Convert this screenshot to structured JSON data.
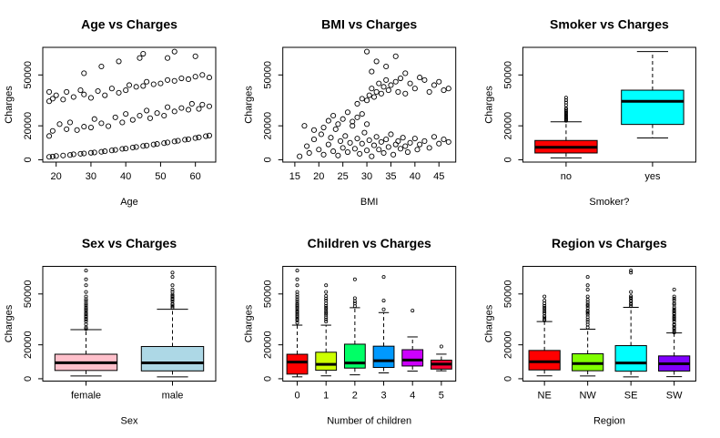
{
  "chart_data": [
    {
      "type": "scatter",
      "title": "Age vs Charges",
      "xlabel": "Age",
      "ylabel": "Charges",
      "xlim": [
        16.16,
        65.84
      ],
      "xticks": [
        20,
        30,
        40,
        50,
        60
      ],
      "ylim": [
        -1385,
        66276
      ],
      "yticks": [
        0,
        20000,
        50000
      ],
      "x": [
        18,
        19,
        20,
        22,
        24,
        25,
        27,
        28,
        30,
        31,
        33,
        34,
        36,
        37,
        39,
        40,
        42,
        43,
        45,
        46,
        48,
        49,
        51,
        52,
        54,
        55,
        57,
        58,
        60,
        61,
        63,
        64,
        18,
        19,
        21,
        23,
        24,
        26,
        28,
        30,
        31,
        33,
        35,
        37,
        39,
        40,
        42,
        44,
        46,
        47,
        49,
        51,
        52,
        54,
        56,
        58,
        59,
        61,
        62,
        64,
        18,
        19,
        20,
        22,
        23,
        25,
        27,
        28,
        30,
        32,
        34,
        36,
        38,
        40,
        41,
        43,
        45,
        46,
        48,
        50,
        52,
        54,
        56,
        58,
        60,
        62,
        64,
        18,
        28,
        33,
        38,
        44,
        45,
        52,
        54,
        60
      ],
      "values": [
        1700,
        1900,
        2200,
        2500,
        2800,
        3200,
        3500,
        3700,
        4100,
        4300,
        4700,
        5000,
        5500,
        5800,
        6400,
        6600,
        7200,
        7500,
        8100,
        8400,
        9000,
        9300,
        9800,
        10200,
        10800,
        11200,
        11800,
        12100,
        12800,
        13200,
        13900,
        14300,
        14000,
        17000,
        21000,
        18000,
        22000,
        17500,
        19500,
        19000,
        24000,
        21500,
        19800,
        25000,
        22000,
        27000,
        23500,
        26000,
        29000,
        24500,
        27500,
        26000,
        31000,
        28500,
        30500,
        29500,
        33000,
        30000,
        32500,
        31500,
        34500,
        36000,
        38000,
        35500,
        40000,
        37000,
        41000,
        38500,
        36500,
        40500,
        38000,
        42000,
        39500,
        41000,
        44000,
        43000,
        43500,
        46000,
        44500,
        45000,
        47000,
        46500,
        48000,
        47500,
        49000,
        50000,
        48500,
        40000,
        51000,
        55000,
        58000,
        60000,
        62500,
        60000,
        63770,
        61000
      ]
    },
    {
      "type": "scatter",
      "title": "BMI vs Charges",
      "xlabel": "BMI",
      "ylabel": "Charges",
      "xlim": [
        12.5,
        48.5
      ],
      "xticks": [
        15,
        20,
        25,
        30,
        35,
        40,
        45
      ],
      "ylim": [
        -1385,
        66276
      ],
      "yticks": [
        0,
        20000,
        50000
      ],
      "x": [
        16,
        17.5,
        18,
        19,
        20,
        20.5,
        21,
        22,
        22.5,
        23,
        23.5,
        24,
        24.5,
        25,
        25.5,
        26,
        26.5,
        27,
        27.5,
        28,
        28.5,
        29,
        29.5,
        30,
        30.5,
        31,
        31.5,
        32,
        32.5,
        33,
        33.5,
        34,
        34.5,
        35,
        35.5,
        36,
        36.5,
        37,
        37.5,
        38,
        38.5,
        39,
        40,
        40.5,
        41,
        42,
        43,
        44,
        45,
        46,
        47,
        17,
        19,
        21,
        22,
        23,
        24,
        25,
        26,
        27,
        28,
        29,
        30,
        30,
        30.5,
        31,
        31.5,
        32,
        32.5,
        33,
        33.5,
        34,
        34.5,
        35,
        36,
        36.5,
        37,
        38,
        39,
        40,
        41,
        42,
        43,
        44,
        45,
        46,
        47,
        29,
        28,
        31,
        32,
        34,
        30,
        36,
        38
      ],
      "values": [
        2000,
        8000,
        4000,
        12000,
        6000,
        15000,
        3000,
        9000,
        13000,
        5000,
        18000,
        2500,
        11000,
        7000,
        14000,
        4500,
        10000,
        20000,
        6500,
        12500,
        3500,
        9500,
        16000,
        5500,
        11500,
        2000,
        8500,
        13500,
        6000,
        10500,
        4000,
        12000,
        7500,
        15000,
        3000,
        9000,
        11000,
        6500,
        13000,
        8000,
        4500,
        10000,
        12500,
        6000,
        9000,
        11000,
        7000,
        13500,
        9500,
        12000,
        10500,
        20000,
        17500,
        19000,
        23000,
        26000,
        21000,
        24000,
        28000,
        22500,
        25000,
        27000,
        21000,
        35000,
        38000,
        42000,
        37000,
        40000,
        45000,
        39000,
        43000,
        47000,
        41000,
        44000,
        46000,
        40000,
        48000,
        39000,
        45000,
        42000,
        48500,
        47000,
        40000,
        44000,
        46000,
        41000,
        42000,
        36000,
        33000,
        52000,
        58000,
        55000,
        63770,
        61000,
        51000
      ]
    },
    {
      "type": "boxplot",
      "title": "Smoker vs Charges",
      "xlabel": "Smoker?",
      "ylabel": "Charges",
      "ylim": [
        -1385,
        66276
      ],
      "yticks": [
        0,
        20000,
        50000
      ],
      "categories": [
        "no",
        "yes"
      ],
      "colors": [
        "#ff0000",
        "#00ffff"
      ],
      "boxes": [
        {
          "whislo": 1122,
          "q1": 3987,
          "median": 7345,
          "q3": 11363,
          "whishi": 22400,
          "outliers": [
            23000,
            23500,
            24000,
            24500,
            25000,
            25700,
            26200,
            27000,
            27700,
            28300,
            29000,
            30000,
            30300,
            32100,
            33700,
            35100,
            36600
          ]
        },
        {
          "whislo": 12829,
          "q1": 20826,
          "median": 34456,
          "q3": 41019,
          "whishi": 63770,
          "outliers": []
        }
      ]
    },
    {
      "type": "boxplot",
      "title": "Sex vs Charges",
      "xlabel": "Sex",
      "ylabel": "Charges",
      "ylim": [
        -1385,
        66276
      ],
      "yticks": [
        0,
        20000,
        50000
      ],
      "categories": [
        "female",
        "male"
      ],
      "colors": [
        "#ffc0cb",
        "#add8e6"
      ],
      "boxes": [
        {
          "whislo": 1607,
          "q1": 4885,
          "median": 9413,
          "q3": 14454,
          "whishi": 28950,
          "outliers": [
            29300,
            30200,
            32100,
            33700,
            34800,
            35600,
            36600,
            37100,
            38100,
            39000,
            40200,
            41100,
            42100,
            43300,
            44400,
            45800,
            46900,
            48500,
            51200,
            55100,
            58600,
            63770
          ]
        },
        {
          "whislo": 1122,
          "q1": 4619,
          "median": 9370,
          "q3": 19007,
          "whishi": 40970,
          "outliers": [
            41900,
            42800,
            43800,
            44200,
            45700,
            46700,
            47300,
            48200,
            48800,
            49600,
            51200,
            52600,
            55100,
            60000,
            62593
          ]
        }
      ]
    },
    {
      "type": "boxplot",
      "title": "Children vs Charges",
      "xlabel": "Number of children",
      "ylabel": "Charges",
      "ylim": [
        -1385,
        66276
      ],
      "yticks": [
        0,
        20000,
        50000
      ],
      "categories": [
        "0",
        "1",
        "2",
        "3",
        "4",
        "5"
      ],
      "colors": [
        "#ff0000",
        "#ccff00",
        "#00ff66",
        "#0099ff",
        "#cc00ff",
        "#ff0033"
      ],
      "boxes": [
        {
          "whislo": 1122,
          "q1": 2735,
          "median": 9857,
          "q3": 14440,
          "whishi": 31620,
          "outliers": [
            33000,
            34400,
            35100,
            36200,
            37100,
            38000,
            39000,
            39800,
            40900,
            41900,
            42800,
            43600,
            44400,
            45700,
            46900,
            48200,
            49600,
            51200,
            55100,
            58600,
            63770
          ]
        },
        {
          "whislo": 1711,
          "q1": 5000,
          "median": 8484,
          "q3": 15632,
          "whishi": 31600,
          "outliers": [
            33700,
            35000,
            36300,
            37700,
            38700,
            39600,
            40900,
            41900,
            43000,
            44400,
            46100,
            47300,
            48800,
            51200,
            55100
          ]
        },
        {
          "whislo": 2304,
          "q1": 6285,
          "median": 9264,
          "q3": 20380,
          "whishi": 41900,
          "outliers": [
            42800,
            44400,
            45700,
            47500,
            58600
          ]
        },
        {
          "whislo": 3443,
          "q1": 6652,
          "median": 10600,
          "q3": 19200,
          "whishi": 39000,
          "outliers": [
            40900,
            46100,
            60000
          ]
        },
        {
          "whislo": 4504,
          "q1": 7512,
          "median": 11034,
          "q3": 17128,
          "whishi": 24671,
          "outliers": [
            40182
          ]
        },
        {
          "whislo": 4687,
          "q1": 5700,
          "median": 8590,
          "q3": 10950,
          "whishi": 14500,
          "outliers": [
            19023
          ]
        }
      ]
    },
    {
      "type": "boxplot",
      "title": "Region vs Charges",
      "xlabel": "Region",
      "ylabel": "Charges",
      "ylim": [
        -1385,
        66276
      ],
      "yticks": [
        0,
        20000,
        50000
      ],
      "categories": [
        "NE",
        "NW",
        "SE",
        "SW"
      ],
      "colors": [
        "#ff0000",
        "#80ff00",
        "#00ffff",
        "#8000ff"
      ],
      "boxes": [
        {
          "whislo": 1695,
          "q1": 5194,
          "median": 10058,
          "q3": 16687,
          "whishi": 33700,
          "outliers": [
            34400,
            35100,
            36200,
            37100,
            38700,
            39700,
            40900,
            41900,
            43000,
            44400,
            46100,
            48500
          ]
        },
        {
          "whislo": 1621,
          "q1": 4720,
          "median": 8966,
          "q3": 14712,
          "whishi": 29200,
          "outliers": [
            30200,
            32000,
            33500,
            34800,
            36300,
            37800,
            38800,
            39700,
            40100,
            41700,
            43000,
            43800,
            45100,
            46600,
            48500,
            52600,
            55100,
            60000
          ]
        },
        {
          "whislo": 1122,
          "q1": 4441,
          "median": 9294,
          "q3": 19526,
          "whishi": 42100,
          "outliers": [
            42800,
            43800,
            44400,
            45700,
            46100,
            47300,
            47900,
            48700,
            51200,
            62600,
            63770
          ]
        },
        {
          "whislo": 1242,
          "q1": 4530,
          "median": 8799,
          "q3": 13463,
          "whishi": 27000,
          "outliers": [
            27300,
            28300,
            29500,
            30200,
            31600,
            32100,
            33700,
            34800,
            35600,
            36200,
            37000,
            38200,
            38700,
            39700,
            40100,
            41000,
            42100,
            43800,
            44600,
            46200,
            47300,
            48500,
            52600
          ]
        }
      ]
    }
  ]
}
